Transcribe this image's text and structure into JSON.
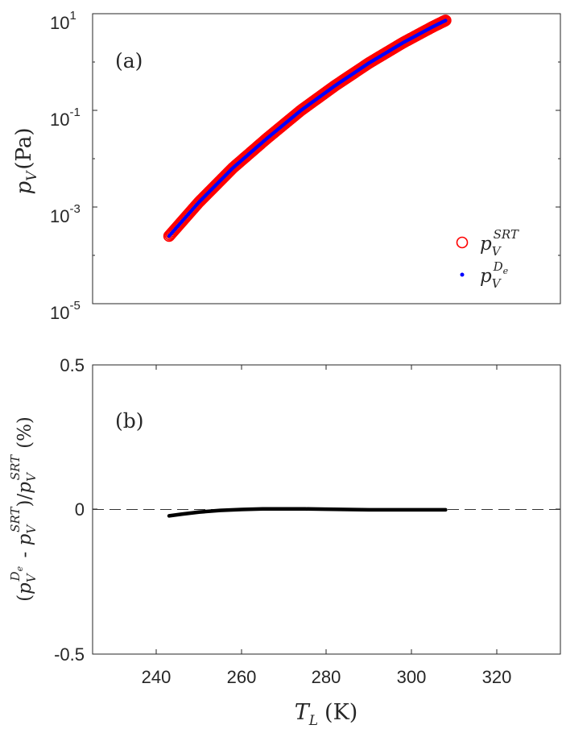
{
  "chart_data": [
    {
      "type": "scatter",
      "panel_label": "(a)",
      "ylabel": {
        "symbol": "p",
        "sub": "V",
        "unit": "(Pa)"
      },
      "yscale": "log",
      "ylim_exp": [
        -5,
        1
      ],
      "ytick_labels": [
        {
          "base": "10",
          "exp": "1"
        },
        {
          "base": "10",
          "exp": "-1"
        },
        {
          "base": "10",
          "exp": "-3"
        },
        {
          "base": "10",
          "exp": "-5"
        }
      ],
      "xlim": [
        225,
        335
      ],
      "x": [
        243,
        250,
        258,
        266,
        274,
        282,
        290,
        298,
        305,
        308
      ],
      "log10_y": [
        -3.6,
        -2.9,
        -2.19,
        -1.58,
        -1.0,
        -0.49,
        -0.02,
        0.4,
        0.73,
        0.86
      ],
      "series": [
        {
          "name": "p_V^SRT",
          "legend": {
            "symbol": "p",
            "sub": "V",
            "sup": "SRT"
          },
          "marker": "circle",
          "color": "#ff0000"
        },
        {
          "name": "p_V^De",
          "legend": {
            "symbol": "p",
            "sub": "V",
            "sup": "D",
            "supsub": "e"
          },
          "marker": "dot",
          "color": "#0000ff"
        }
      ],
      "legend_position": "bottom-right"
    },
    {
      "type": "line",
      "panel_label": "(b)",
      "ylabel": "(p_V^De - p_V^SRT)/p_V^SRT (%)",
      "ylabel_parts": {
        "open": "(",
        "p": "p",
        "sub": "V",
        "supA": "D",
        "supAsub": "e",
        "minus": " - ",
        "supB": "SRT",
        "slash": ")/",
        "unit": "(%)"
      },
      "xlabel": {
        "symbol": "T",
        "sub": "L",
        "unit": "(K)"
      },
      "xlim": [
        225,
        335
      ],
      "ylim": [
        -0.5,
        0.5
      ],
      "xtick_labels": [
        "240",
        "260",
        "280",
        "300",
        "320"
      ],
      "xticks": [
        240,
        260,
        280,
        300,
        320
      ],
      "ytick_labels": [
        "0.5",
        "0",
        "-0.5"
      ],
      "yticks": [
        0.5,
        0,
        -0.5
      ],
      "reference_line": 0,
      "x": [
        243,
        246,
        250,
        255,
        260,
        265,
        270,
        275,
        280,
        285,
        290,
        295,
        300,
        305,
        308
      ],
      "y": [
        -0.022,
        -0.016,
        -0.009,
        -0.003,
        0.0,
        0.002,
        0.002,
        0.002,
        0.001,
        0.0,
        -0.001,
        -0.001,
        -0.001,
        -0.001,
        -0.001
      ],
      "color": "#000000"
    }
  ]
}
